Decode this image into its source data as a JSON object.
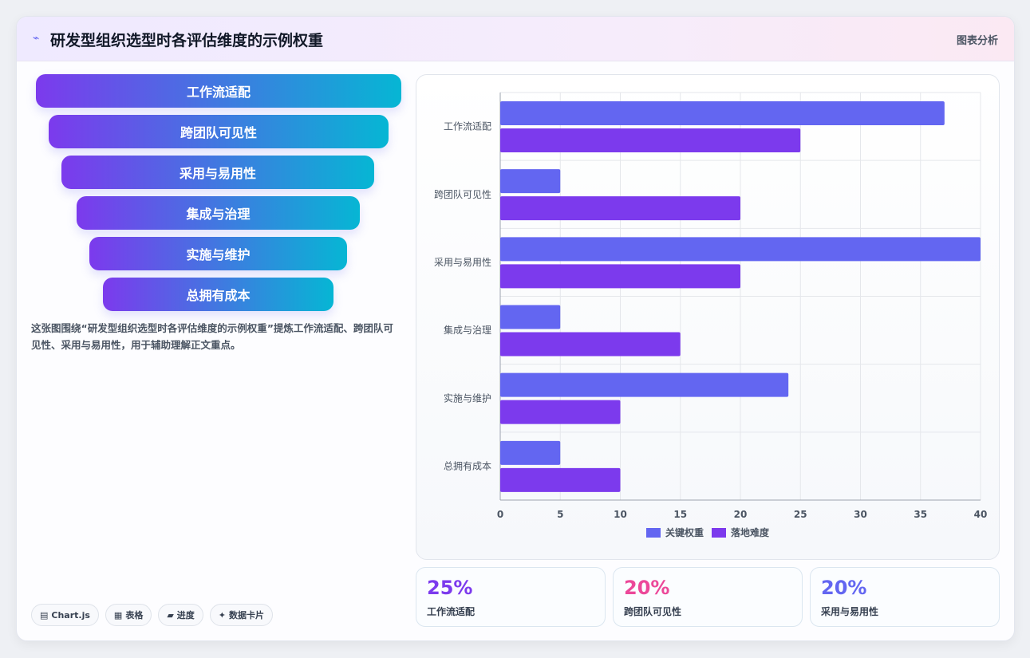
{
  "header": {
    "icon": "chart-line-icon",
    "title": "研发型组织选型时各评估维度的示例权重",
    "action_label": "图表分析"
  },
  "funnel": {
    "items": [
      "工作流适配",
      "跨团队可见性",
      "采用与易用性",
      "集成与治理",
      "实施与维护",
      "总拥有成本"
    ]
  },
  "description": "这张图围绕“研发型组织选型时各评估维度的示例权重”提炼工作流适配、跨团队可见性、采用与易用性，用于辅助理解正文重点。",
  "chips": [
    {
      "icon": "chart-icon",
      "glyph": "▤",
      "label": "Chart.js"
    },
    {
      "icon": "table-icon",
      "glyph": "▦",
      "label": "表格"
    },
    {
      "icon": "progress-icon",
      "glyph": "▰",
      "label": "进度"
    },
    {
      "icon": "sparkle-icon",
      "glyph": "✦",
      "label": "数据卡片"
    }
  ],
  "kpis": [
    {
      "value": "25%",
      "label": "工作流适配",
      "color": "#7c3aed"
    },
    {
      "value": "20%",
      "label": "跨团队可见性",
      "color": "#ec4899"
    },
    {
      "value": "20%",
      "label": "采用与易用性",
      "color": "#6366f1"
    }
  ],
  "chart_data": {
    "type": "bar",
    "orientation": "horizontal",
    "categories": [
      "工作流适配",
      "跨团队可见性",
      "采用与易用性",
      "集成与治理",
      "实施与维护",
      "总拥有成本"
    ],
    "series": [
      {
        "name": "关键权重",
        "color": "#6366f1",
        "values": [
          37,
          5,
          40,
          5,
          24,
          5
        ]
      },
      {
        "name": "落地难度",
        "color": "#7c3aed",
        "values": [
          25,
          20,
          20,
          15,
          10,
          10
        ]
      }
    ],
    "xlim": [
      0,
      40
    ],
    "xticks": [
      0,
      5,
      10,
      15,
      20,
      25,
      30,
      35,
      40
    ],
    "grid": true,
    "legend": "bottom"
  }
}
